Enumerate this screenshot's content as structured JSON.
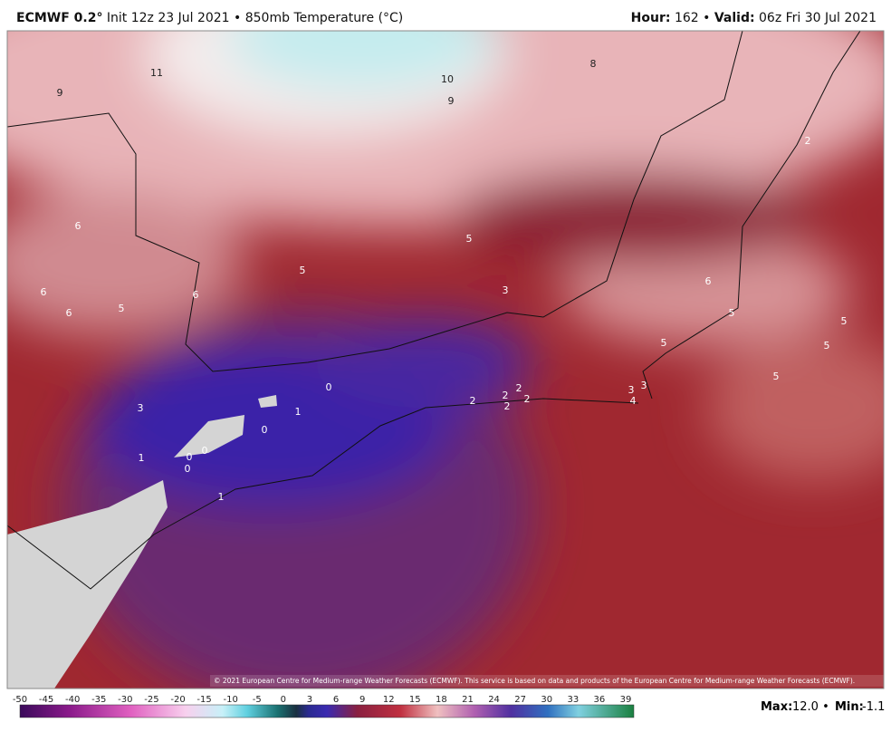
{
  "header": {
    "model": "ECMWF 0.2°",
    "description": "Init 12z 23 Jul 2021 • 850mb Temperature (°C)",
    "hour_label": "Hour:",
    "hour": "162 •",
    "valid_label": "Valid:",
    "valid": "06z Fri 30 Jul 2021"
  },
  "map": {
    "contour_labels": [
      11,
      9,
      10,
      9,
      8,
      6,
      5,
      5,
      6,
      6,
      6,
      5,
      3,
      6,
      5,
      5,
      5,
      5,
      5,
      3,
      0,
      1,
      0,
      2,
      2,
      2,
      2,
      2,
      3,
      3,
      4,
      1,
      0,
      0,
      0,
      1,
      2
    ],
    "copyright": "© 2021 European Centre for Medium-range Weather Forecasts (ECMWF). This service is based on data and products of the European Centre for Medium-range Weather Forecasts (ECMWF)."
  },
  "colorbar": {
    "ticks": [
      -50,
      -45,
      -40,
      -35,
      -30,
      -25,
      -20,
      -15,
      -10,
      -5,
      0,
      3,
      6,
      9,
      12,
      15,
      18,
      21,
      24,
      27,
      30,
      33,
      36,
      39
    ]
  },
  "footer": {
    "max_label": "Max:",
    "max": "12.0 •",
    "min_label": "Min:",
    "min": "-1.1"
  }
}
